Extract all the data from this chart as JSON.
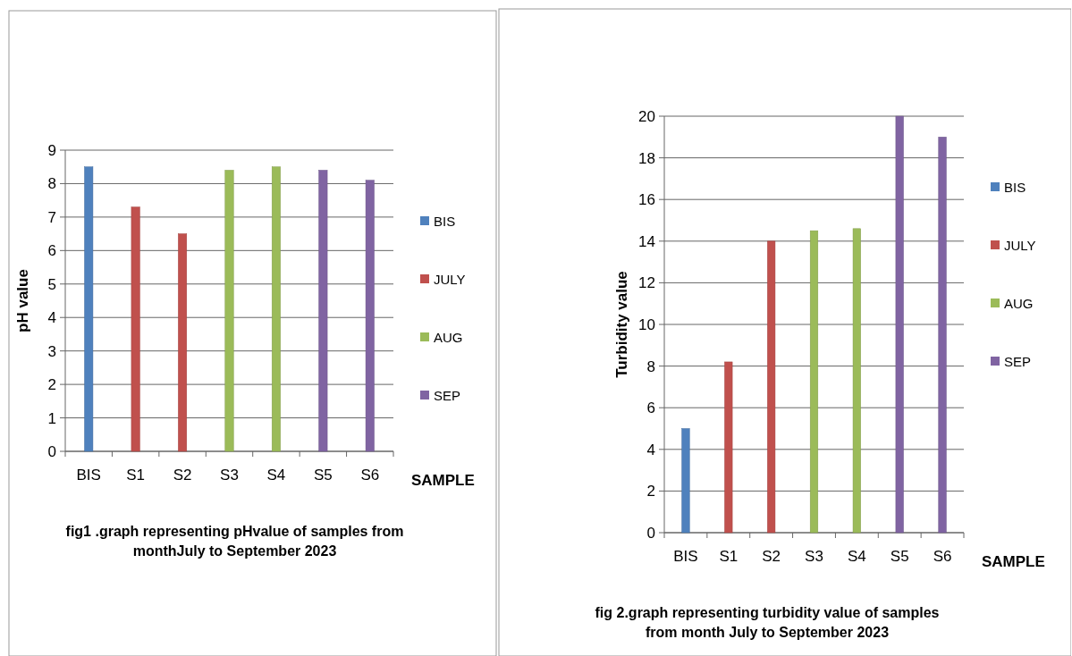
{
  "chart_data": [
    {
      "type": "bar",
      "title": "fig1 .graph representing pHvalue of samples from monthJuly to September 2023",
      "xlabel": "SAMPLE",
      "ylabel": "pH value",
      "categories": [
        "BIS",
        "S1",
        "S2",
        "S3",
        "S4",
        "S5",
        "S6"
      ],
      "series": [
        {
          "name": "BIS",
          "color": "#4f81bd",
          "values": [
            8.5,
            null,
            null,
            null,
            null,
            null,
            null
          ]
        },
        {
          "name": "JULY",
          "color": "#c0504d",
          "values": [
            null,
            7.3,
            6.5,
            null,
            null,
            null,
            null
          ]
        },
        {
          "name": "AUG",
          "color": "#9bbb59",
          "values": [
            null,
            null,
            null,
            8.4,
            8.5,
            null,
            null
          ]
        },
        {
          "name": "SEP",
          "color": "#8064a2",
          "values": [
            null,
            null,
            null,
            null,
            null,
            8.4,
            8.1
          ]
        }
      ],
      "ylim": [
        0,
        9
      ],
      "yticks": [
        0,
        1,
        2,
        3,
        4,
        5,
        6,
        7,
        8,
        9
      ],
      "grid": "y",
      "legend": "right"
    },
    {
      "type": "bar",
      "title": "fig 2.graph representing turbidity value of samples from month July to September 2023",
      "xlabel": "SAMPLE",
      "ylabel": "Turbidity value",
      "categories": [
        "BIS",
        "S1",
        "S2",
        "S3",
        "S4",
        "S5",
        "S6"
      ],
      "series": [
        {
          "name": "BIS",
          "color": "#4f81bd",
          "values": [
            5,
            null,
            null,
            null,
            null,
            null,
            null
          ]
        },
        {
          "name": "JULY",
          "color": "#c0504d",
          "values": [
            null,
            8.2,
            14,
            null,
            null,
            null,
            null
          ]
        },
        {
          "name": "AUG",
          "color": "#9bbb59",
          "values": [
            null,
            null,
            null,
            14.5,
            14.6,
            null,
            null
          ]
        },
        {
          "name": "SEP",
          "color": "#8064a2",
          "values": [
            null,
            null,
            null,
            null,
            null,
            20,
            19
          ]
        }
      ],
      "ylim": [
        0,
        20
      ],
      "yticks": [
        0,
        2,
        4,
        6,
        8,
        10,
        12,
        14,
        16,
        18,
        20
      ],
      "grid": "y",
      "legend": "right"
    }
  ]
}
